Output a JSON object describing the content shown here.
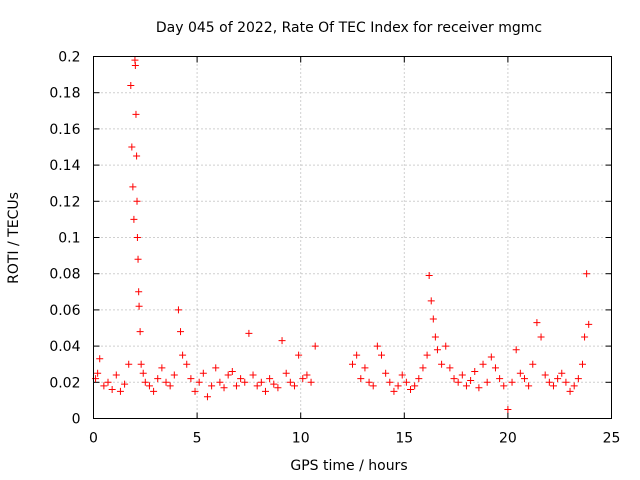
{
  "chart_data": {
    "type": "scatter",
    "title": "Day 045 of 2022, Rate Of TEC Index for receiver mgmc",
    "xlabel": "GPS time / hours",
    "ylabel": "ROTI / TECUs",
    "xlim": [
      0,
      25
    ],
    "ylim": [
      0,
      0.2
    ],
    "xticks": [
      0,
      5,
      10,
      15,
      20,
      25
    ],
    "yticks": [
      0,
      0.02,
      0.04,
      0.06,
      0.08,
      0.1,
      0.12,
      0.14,
      0.16,
      0.18,
      0.2
    ],
    "grid": true,
    "marker": "+",
    "color": "#ff0000",
    "series": [
      {
        "name": "ROTI",
        "x": [
          0.1,
          0.2,
          0.3,
          0.5,
          0.7,
          0.9,
          1.1,
          1.3,
          1.5,
          1.7,
          1.8,
          1.85,
          1.9,
          1.95,
          2.0,
          2.02,
          2.05,
          2.08,
          2.1,
          2.12,
          2.15,
          2.18,
          2.2,
          2.25,
          2.3,
          2.4,
          2.5,
          2.7,
          2.9,
          3.1,
          3.3,
          3.5,
          3.7,
          3.9,
          4.1,
          4.2,
          4.3,
          4.5,
          4.7,
          4.9,
          5.1,
          5.3,
          5.5,
          5.7,
          5.9,
          6.1,
          6.3,
          6.5,
          6.7,
          6.9,
          7.1,
          7.3,
          7.5,
          7.7,
          7.9,
          8.1,
          8.3,
          8.5,
          8.7,
          8.9,
          9.1,
          9.3,
          9.5,
          9.7,
          9.9,
          10.1,
          10.3,
          10.5,
          10.7,
          12.5,
          12.7,
          12.9,
          13.1,
          13.3,
          13.5,
          13.7,
          13.9,
          14.1,
          14.3,
          14.5,
          14.7,
          14.9,
          15.1,
          15.3,
          15.5,
          15.7,
          15.9,
          16.1,
          16.2,
          16.3,
          16.4,
          16.5,
          16.6,
          16.8,
          17.0,
          17.2,
          17.4,
          17.6,
          17.8,
          18.0,
          18.2,
          18.4,
          18.6,
          18.8,
          19.0,
          19.2,
          19.4,
          19.6,
          19.8,
          20.0,
          20.2,
          20.4,
          20.6,
          20.8,
          21.0,
          21.2,
          21.4,
          21.6,
          21.8,
          22.0,
          22.2,
          22.4,
          22.6,
          22.8,
          23.0,
          23.2,
          23.4,
          23.6,
          23.7,
          23.8,
          23.9
        ],
        "y": [
          0.022,
          0.025,
          0.033,
          0.018,
          0.02,
          0.016,
          0.024,
          0.015,
          0.019,
          0.03,
          0.184,
          0.15,
          0.128,
          0.11,
          0.198,
          0.195,
          0.168,
          0.145,
          0.12,
          0.1,
          0.088,
          0.07,
          0.062,
          0.048,
          0.03,
          0.025,
          0.02,
          0.018,
          0.015,
          0.022,
          0.028,
          0.02,
          0.018,
          0.024,
          0.06,
          0.048,
          0.035,
          0.03,
          0.022,
          0.015,
          0.02,
          0.025,
          0.012,
          0.018,
          0.028,
          0.02,
          0.017,
          0.024,
          0.026,
          0.018,
          0.022,
          0.02,
          0.047,
          0.024,
          0.018,
          0.02,
          0.015,
          0.022,
          0.019,
          0.017,
          0.043,
          0.025,
          0.02,
          0.018,
          0.035,
          0.022,
          0.024,
          0.02,
          0.04,
          0.03,
          0.035,
          0.022,
          0.028,
          0.02,
          0.018,
          0.04,
          0.035,
          0.025,
          0.02,
          0.015,
          0.018,
          0.024,
          0.02,
          0.016,
          0.018,
          0.022,
          0.028,
          0.035,
          0.079,
          0.065,
          0.055,
          0.045,
          0.038,
          0.03,
          0.04,
          0.028,
          0.022,
          0.02,
          0.024,
          0.018,
          0.021,
          0.026,
          0.017,
          0.03,
          0.02,
          0.034,
          0.028,
          0.022,
          0.018,
          0.005,
          0.02,
          0.038,
          0.025,
          0.022,
          0.018,
          0.03,
          0.053,
          0.045,
          0.024,
          0.02,
          0.018,
          0.022,
          0.025,
          0.02,
          0.015,
          0.018,
          0.022,
          0.03,
          0.045,
          0.08,
          0.052
        ]
      }
    ]
  }
}
